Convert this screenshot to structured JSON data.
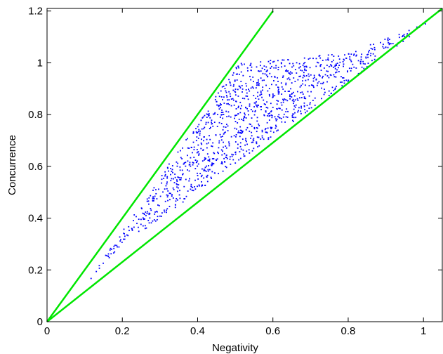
{
  "chart_data": {
    "type": "scatter",
    "title": "",
    "xlabel": "Negativity",
    "ylabel": "Concurrence",
    "xlim": [
      0,
      1.05
    ],
    "ylim": [
      0,
      1.21
    ],
    "xticks": [
      0,
      0.2,
      0.4,
      0.6,
      0.8,
      1
    ],
    "xtick_labels": [
      "0",
      "0.2",
      "0.4",
      "0.6",
      "0.8",
      "1"
    ],
    "yticks": [
      0,
      0.2,
      0.4,
      0.6,
      0.8,
      1,
      1.2
    ],
    "ytick_labels": [
      "0",
      "0.2",
      "0.4",
      "0.6",
      "0.8",
      "1",
      "1.2"
    ],
    "grid": false,
    "legend": "none",
    "point_count": 1200,
    "boundary_lines": [
      {
        "x": [
          0,
          0.6
        ],
        "y": [
          0,
          1.2
        ],
        "color": "#00e600"
      },
      {
        "x": [
          0,
          1.05
        ],
        "y": [
          0,
          1.21
        ],
        "color": "#00e600"
      }
    ],
    "series": [
      {
        "color": "#0000ff",
        "region_vertices": [
          [
            0.09,
            0.12
          ],
          [
            0.51,
            1.0
          ],
          [
            0.6,
            1.01
          ],
          [
            0.8,
            1.04
          ],
          [
            1.02,
            1.16
          ],
          [
            0.18,
            0.27
          ]
        ]
      }
    ]
  }
}
